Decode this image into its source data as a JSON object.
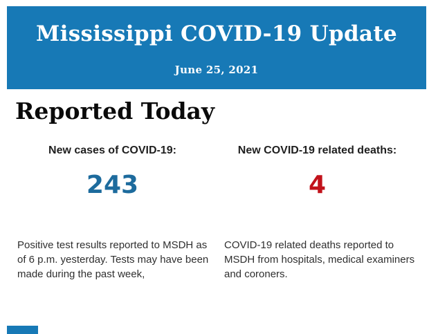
{
  "colors": {
    "header_bg": "#1779b6",
    "cases_value": "#1d6b9d",
    "deaths_value": "#c2121b"
  },
  "header": {
    "title": "Mississippi COVID-19 Update",
    "date": "June 25, 2021"
  },
  "main": {
    "section_title": "Reported Today",
    "stats": [
      {
        "label": "New cases of COVID-19:",
        "value": "243",
        "description_lines": [
          "Positive test results reported to MSDH as",
          "of 6 p.m. yesterday. Tests may have been",
          "made during the past week,"
        ]
      },
      {
        "label": "New COVID-19 related deaths:",
        "value": "4",
        "description_lines": [
          "COVID-19 related deaths reported to",
          "MSDH from hospitals, medical examiners",
          "and coroners."
        ]
      }
    ]
  }
}
